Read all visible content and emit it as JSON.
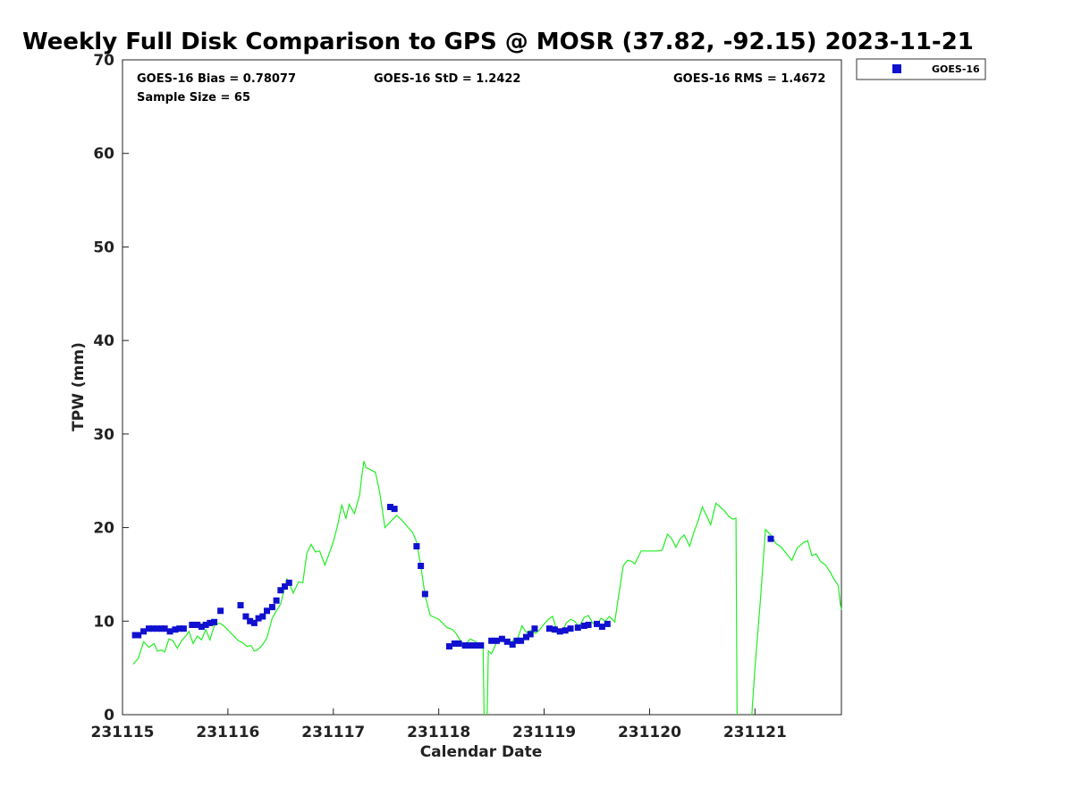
{
  "chart_data": {
    "type": "scatter",
    "title": "Weekly Full Disk Comparison to GPS @ MOSR (37.82, -92.15) 2023-11-21",
    "xlabel": "Calendar Date",
    "ylabel": "TPW (mm)",
    "xlim": [
      231115.0,
      231121.82
    ],
    "ylim": [
      0,
      70
    ],
    "x_ticks": [
      231115,
      231116,
      231117,
      231118,
      231119,
      231120,
      231121
    ],
    "x_tick_labels": [
      "231115",
      "231116",
      "231117",
      "231118",
      "231119",
      "231120",
      "231121"
    ],
    "y_ticks": [
      0,
      10,
      20,
      30,
      40,
      50,
      60,
      70
    ],
    "y_tick_labels": [
      "0",
      "10",
      "20",
      "30",
      "40",
      "50",
      "60",
      "70"
    ],
    "grid": false,
    "legend_position": "top-right-outside",
    "legend": [
      "GOES-16"
    ],
    "stats": {
      "bias": "GOES-16 Bias = 0.78077",
      "std": "GOES-16 StD = 1.2422",
      "rms": "GOES-16 RMS = 1.4672",
      "sample": "Sample Size = 65"
    },
    "colors": {
      "goes": "#1010d0",
      "gps": "#22ee22"
    },
    "series": [
      {
        "name": "GOES-16",
        "kind": "scatter",
        "points": [
          [
            231115.12,
            8.5
          ],
          [
            231115.15,
            8.5
          ],
          [
            231115.2,
            8.9
          ],
          [
            231115.25,
            9.2
          ],
          [
            231115.29,
            9.2
          ],
          [
            231115.33,
            9.2
          ],
          [
            231115.37,
            9.2
          ],
          [
            231115.4,
            9.2
          ],
          [
            231115.45,
            8.9
          ],
          [
            231115.5,
            9.1
          ],
          [
            231115.54,
            9.2
          ],
          [
            231115.58,
            9.2
          ],
          [
            231115.66,
            9.6
          ],
          [
            231115.71,
            9.6
          ],
          [
            231115.75,
            9.4
          ],
          [
            231115.79,
            9.6
          ],
          [
            231115.83,
            9.8
          ],
          [
            231115.87,
            9.9
          ],
          [
            231115.93,
            11.1
          ],
          [
            231116.12,
            11.7
          ],
          [
            231116.17,
            10.5
          ],
          [
            231116.21,
            10.0
          ],
          [
            231116.25,
            9.8
          ],
          [
            231116.29,
            10.3
          ],
          [
            231116.33,
            10.5
          ],
          [
            231116.37,
            11.1
          ],
          [
            231116.42,
            11.5
          ],
          [
            231116.46,
            12.2
          ],
          [
            231116.5,
            13.3
          ],
          [
            231116.54,
            13.7
          ],
          [
            231116.58,
            14.1
          ],
          [
            231117.54,
            22.2
          ],
          [
            231117.58,
            22.0
          ],
          [
            231117.79,
            18.0
          ],
          [
            231117.83,
            15.9
          ],
          [
            231117.87,
            12.9
          ],
          [
            231118.1,
            7.3
          ],
          [
            231118.15,
            7.6
          ],
          [
            231118.19,
            7.6
          ],
          [
            231118.25,
            7.4
          ],
          [
            231118.3,
            7.4
          ],
          [
            231118.35,
            7.4
          ],
          [
            231118.4,
            7.4
          ],
          [
            231118.5,
            7.9
          ],
          [
            231118.55,
            7.9
          ],
          [
            231118.6,
            8.1
          ],
          [
            231118.65,
            7.8
          ],
          [
            231118.7,
            7.5
          ],
          [
            231118.74,
            7.9
          ],
          [
            231118.78,
            7.9
          ],
          [
            231118.83,
            8.3
          ],
          [
            231118.87,
            8.6
          ],
          [
            231118.91,
            9.2
          ],
          [
            231119.1,
            9.1
          ],
          [
            231119.15,
            8.9
          ],
          [
            231119.2,
            9.0
          ],
          [
            231119.25,
            9.2
          ],
          [
            231119.32,
            9.3
          ],
          [
            231119.38,
            9.5
          ],
          [
            231119.42,
            9.6
          ],
          [
            231119.5,
            9.7
          ],
          [
            231119.55,
            9.4
          ],
          [
            231119.6,
            9.7
          ],
          [
            231121.15,
            18.8
          ],
          [
            231119.05,
            9.2
          ]
        ]
      },
      {
        "name": "GPS",
        "kind": "line",
        "segments": [
          [
            [
              231115.1,
              5.4
            ],
            [
              231115.15,
              6.0
            ],
            [
              231115.2,
              7.8
            ],
            [
              231115.25,
              7.2
            ],
            [
              231115.3,
              7.6
            ],
            [
              231115.33,
              6.8
            ],
            [
              231115.37,
              6.9
            ],
            [
              231115.4,
              6.7
            ],
            [
              231115.44,
              8.1
            ],
            [
              231115.48,
              7.9
            ],
            [
              231115.52,
              7.1
            ],
            [
              231115.56,
              7.9
            ],
            [
              231115.6,
              8.4
            ],
            [
              231115.63,
              8.9
            ],
            [
              231115.67,
              7.6
            ],
            [
              231115.71,
              8.4
            ],
            [
              231115.75,
              8.0
            ],
            [
              231115.79,
              9.1
            ],
            [
              231115.83,
              8.0
            ],
            [
              231115.87,
              9.5
            ],
            [
              231115.92,
              9.8
            ],
            [
              231115.96,
              9.5
            ],
            [
              231116.04,
              8.6
            ],
            [
              231116.1,
              7.9
            ],
            [
              231116.14,
              7.7
            ],
            [
              231116.18,
              7.3
            ],
            [
              231116.22,
              7.4
            ],
            [
              231116.25,
              6.8
            ],
            [
              231116.28,
              6.9
            ],
            [
              231116.33,
              7.5
            ],
            [
              231116.37,
              8.2
            ],
            [
              231116.42,
              10.3
            ],
            [
              231116.46,
              11.1
            ],
            [
              231116.5,
              11.8
            ],
            [
              231116.53,
              13.2
            ],
            [
              231116.56,
              14.5
            ],
            [
              231116.58,
              14.1
            ],
            [
              231116.62,
              13.0
            ],
            [
              231116.67,
              14.2
            ],
            [
              231116.71,
              14.1
            ],
            [
              231116.75,
              17.3
            ],
            [
              231116.79,
              18.2
            ],
            [
              231116.83,
              17.4
            ],
            [
              231116.87,
              17.5
            ],
            [
              231116.92,
              16.0
            ],
            [
              231116.96,
              17.2
            ],
            [
              231117.0,
              18.5
            ],
            [
              231117.04,
              20.2
            ],
            [
              231117.08,
              22.4
            ],
            [
              231117.12,
              21.0
            ],
            [
              231117.15,
              22.5
            ],
            [
              231117.2,
              21.5
            ],
            [
              231117.25,
              23.5
            ],
            [
              231117.27,
              25.5
            ],
            [
              231117.29,
              27.1
            ],
            [
              231117.31,
              26.4
            ],
            [
              231117.35,
              26.2
            ],
            [
              231117.4,
              25.9
            ],
            [
              231117.44,
              23.8
            ],
            [
              231117.49,
              20.0
            ],
            [
              231117.54,
              20.6
            ],
            [
              231117.6,
              21.3
            ],
            [
              231117.65,
              20.8
            ],
            [
              231117.71,
              20.0
            ],
            [
              231117.75,
              19.5
            ],
            [
              231117.79,
              18.5
            ],
            [
              231117.83,
              15.9
            ],
            [
              231117.87,
              12.8
            ],
            [
              231117.92,
              10.6
            ],
            [
              231118.0,
              10.2
            ],
            [
              231118.08,
              9.3
            ],
            [
              231118.13,
              9.1
            ],
            [
              231118.17,
              8.6
            ],
            [
              231118.21,
              7.8
            ],
            [
              231118.25,
              7.5
            ],
            [
              231118.3,
              8.1
            ],
            [
              231118.35,
              7.8
            ],
            [
              231118.38,
              7.4
            ],
            [
              231118.42,
              7.4
            ],
            [
              231118.43,
              0.0
            ]
          ],
          [
            [
              231118.46,
              0.0
            ],
            [
              231118.47,
              6.8
            ],
            [
              231118.5,
              6.5
            ],
            [
              231118.54,
              7.5
            ],
            [
              231118.58,
              8.0
            ],
            [
              231118.62,
              7.8
            ],
            [
              231118.67,
              7.6
            ],
            [
              231118.71,
              8.0
            ],
            [
              231118.75,
              8.2
            ],
            [
              231118.79,
              9.5
            ],
            [
              231118.83,
              8.8
            ],
            [
              231118.87,
              9.0
            ],
            [
              231118.92,
              8.7
            ],
            [
              231118.96,
              9.1
            ],
            [
              231119.0,
              9.7
            ],
            [
              231119.04,
              10.2
            ],
            [
              231119.08,
              10.5
            ],
            [
              231119.12,
              9.0
            ],
            [
              231119.17,
              8.8
            ],
            [
              231119.21,
              9.8
            ],
            [
              231119.25,
              10.2
            ],
            [
              231119.29,
              10.0
            ],
            [
              231119.33,
              9.4
            ],
            [
              231119.38,
              10.4
            ],
            [
              231119.42,
              10.6
            ],
            [
              231119.46,
              9.8
            ],
            [
              231119.5,
              9.6
            ],
            [
              231119.54,
              10.3
            ],
            [
              231119.58,
              10.0
            ],
            [
              231119.62,
              10.5
            ],
            [
              231119.67,
              9.9
            ],
            [
              231119.71,
              13.0
            ],
            [
              231119.75,
              15.9
            ],
            [
              231119.79,
              16.5
            ],
            [
              231119.83,
              16.4
            ],
            [
              231119.86,
              16.1
            ],
            [
              231119.92,
              17.5
            ],
            [
              231120.0,
              17.5
            ],
            [
              231120.08,
              17.5
            ],
            [
              231120.12,
              17.6
            ],
            [
              231120.17,
              19.3
            ],
            [
              231120.21,
              18.8
            ],
            [
              231120.25,
              17.9
            ],
            [
              231120.29,
              18.8
            ],
            [
              231120.33,
              19.2
            ],
            [
              231120.38,
              18.0
            ],
            [
              231120.42,
              19.5
            ],
            [
              231120.46,
              20.7
            ],
            [
              231120.5,
              22.2
            ],
            [
              231120.54,
              21.3
            ],
            [
              231120.58,
              20.3
            ],
            [
              231120.63,
              22.6
            ],
            [
              231120.67,
              22.2
            ],
            [
              231120.71,
              21.8
            ],
            [
              231120.75,
              21.2
            ],
            [
              231120.79,
              20.9
            ],
            [
              231120.82,
              21.0
            ],
            [
              231120.83,
              0.0
            ]
          ],
          [
            [
              231120.97,
              0.0
            ],
            [
              231121.0,
              5.0
            ],
            [
              231121.05,
              12.0
            ],
            [
              231121.1,
              19.8
            ],
            [
              231121.15,
              19.2
            ],
            [
              231121.2,
              18.3
            ],
            [
              231121.25,
              17.9
            ],
            [
              231121.3,
              17.2
            ],
            [
              231121.35,
              16.5
            ],
            [
              231121.4,
              17.8
            ],
            [
              231121.46,
              18.4
            ],
            [
              231121.5,
              18.6
            ],
            [
              231121.54,
              17.0
            ],
            [
              231121.58,
              17.2
            ],
            [
              231121.62,
              16.4
            ],
            [
              231121.67,
              16.0
            ],
            [
              231121.71,
              15.3
            ],
            [
              231121.75,
              14.5
            ],
            [
              231121.79,
              13.8
            ],
            [
              231121.81,
              11.8
            ],
            [
              231121.82,
              11.2
            ]
          ]
        ]
      }
    ]
  }
}
